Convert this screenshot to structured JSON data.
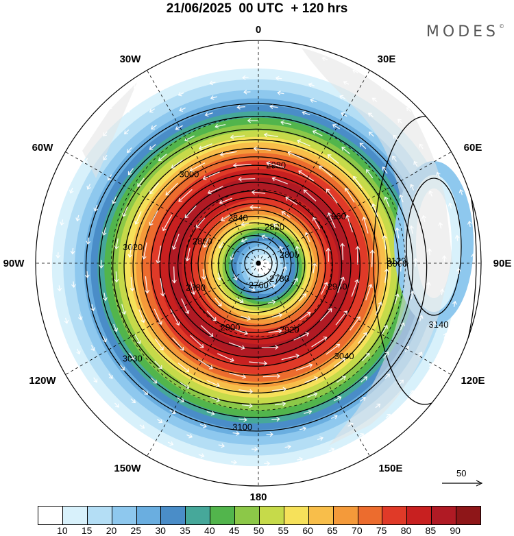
{
  "title": "21/06/2025  00 UTC  + 120 hrs",
  "brand": {
    "name": "MODES",
    "mark": "©"
  },
  "lon_labels": {
    "n": "0",
    "ne": "30E",
    "nw": "30W",
    "ene": "60E",
    "wnw": "60W",
    "e": "90E",
    "w": "90W",
    "ese": "120E",
    "wsw": "120W",
    "se": "150E",
    "sw": "150W",
    "s": "180"
  },
  "contours": [
    {
      "label": "3060",
      "r": 0.63
    },
    {
      "label": "3040",
      "r": 0.58
    },
    {
      "label": "3100",
      "r": 0.75
    },
    {
      "label": "3080",
      "r": 0.69
    },
    {
      "label": "3020",
      "r": 0.54
    },
    {
      "label": "3000",
      "r": 0.5
    },
    {
      "label": "2980",
      "r": 0.46
    },
    {
      "label": "2960",
      "r": 0.42
    },
    {
      "label": "2940",
      "r": 0.38
    },
    {
      "label": "2920",
      "r": 0.34
    },
    {
      "label": "2900",
      "r": 0.31
    },
    {
      "label": "2880",
      "r": 0.28
    },
    {
      "label": "2860",
      "r": 0.25
    },
    {
      "label": "2840",
      "r": 0.22
    },
    {
      "label": "2820",
      "r": 0.19
    },
    {
      "label": "2800",
      "r": 0.16
    },
    {
      "label": "2780",
      "r": 0.13
    },
    {
      "label": "2760",
      "r": 0.1
    },
    {
      "label": "3120",
      "r": 0.8
    },
    {
      "label": "3140",
      "r": 0.86
    }
  ],
  "scale_vector": {
    "label": "50"
  },
  "colorbar": {
    "colors": [
      "#ffffff",
      "#d8f1fb",
      "#b4def5",
      "#8ec8ee",
      "#6aaee0",
      "#4a8dc8",
      "#46a89a",
      "#52b54c",
      "#8cc848",
      "#c6da4a",
      "#f6e15a",
      "#f8be4a",
      "#f49a3a",
      "#ec6c2e",
      "#e03a28",
      "#c82020",
      "#b01a24",
      "#8e1618"
    ],
    "labels": [
      "10",
      "15",
      "20",
      "25",
      "30",
      "35",
      "40",
      "45",
      "50",
      "55",
      "60",
      "65",
      "70",
      "75",
      "80",
      "85",
      "90"
    ]
  }
}
